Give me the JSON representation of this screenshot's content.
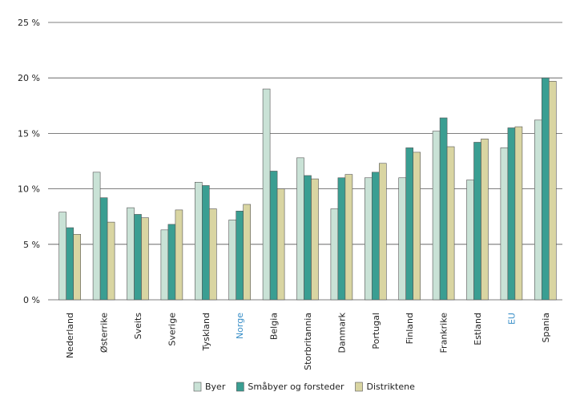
{
  "chart_data": {
    "type": "bar",
    "categories": [
      "Nederland",
      "Østerrike",
      "Sveits",
      "Sverige",
      "Tyskland",
      "Norge",
      "Belgia",
      "Storbritannia",
      "Danmark",
      "Portugal",
      "Finland",
      "Frankrike",
      "Estland",
      "EU",
      "Spania"
    ],
    "category_colors": [
      "#222222",
      "#222222",
      "#222222",
      "#222222",
      "#222222",
      "#3a8fc8",
      "#222222",
      "#222222",
      "#222222",
      "#222222",
      "#222222",
      "#222222",
      "#222222",
      "#3a8fc8",
      "#222222"
    ],
    "series": [
      {
        "name": "Byer",
        "color": "#c9e2d6",
        "values": [
          7.9,
          11.5,
          8.3,
          6.3,
          10.6,
          7.2,
          19.0,
          12.8,
          8.2,
          11.0,
          11.0,
          15.2,
          10.8,
          13.7,
          16.2
        ]
      },
      {
        "name": "Småbyer og forsteder",
        "color": "#3a9e92",
        "values": [
          6.5,
          9.2,
          7.7,
          6.8,
          10.3,
          8.0,
          11.6,
          11.2,
          11.0,
          11.5,
          13.7,
          16.4,
          14.2,
          15.5,
          20.0
        ]
      },
      {
        "name": "Distriktene",
        "color": "#d9d5a2",
        "values": [
          5.9,
          7.0,
          7.4,
          8.1,
          8.2,
          8.6,
          10.0,
          10.9,
          11.3,
          12.3,
          13.3,
          13.8,
          14.5,
          15.6,
          19.7
        ]
      }
    ],
    "ylim": [
      0,
      25
    ],
    "yticks": [
      {
        "value": 0,
        "label": "0 %"
      },
      {
        "value": 5,
        "label": "5 %"
      },
      {
        "value": 10,
        "label": "10 %"
      },
      {
        "value": 15,
        "label": "15 %"
      },
      {
        "value": 20,
        "label": "20 %"
      },
      {
        "value": 25,
        "label": "25 %"
      }
    ],
    "grid": true
  }
}
